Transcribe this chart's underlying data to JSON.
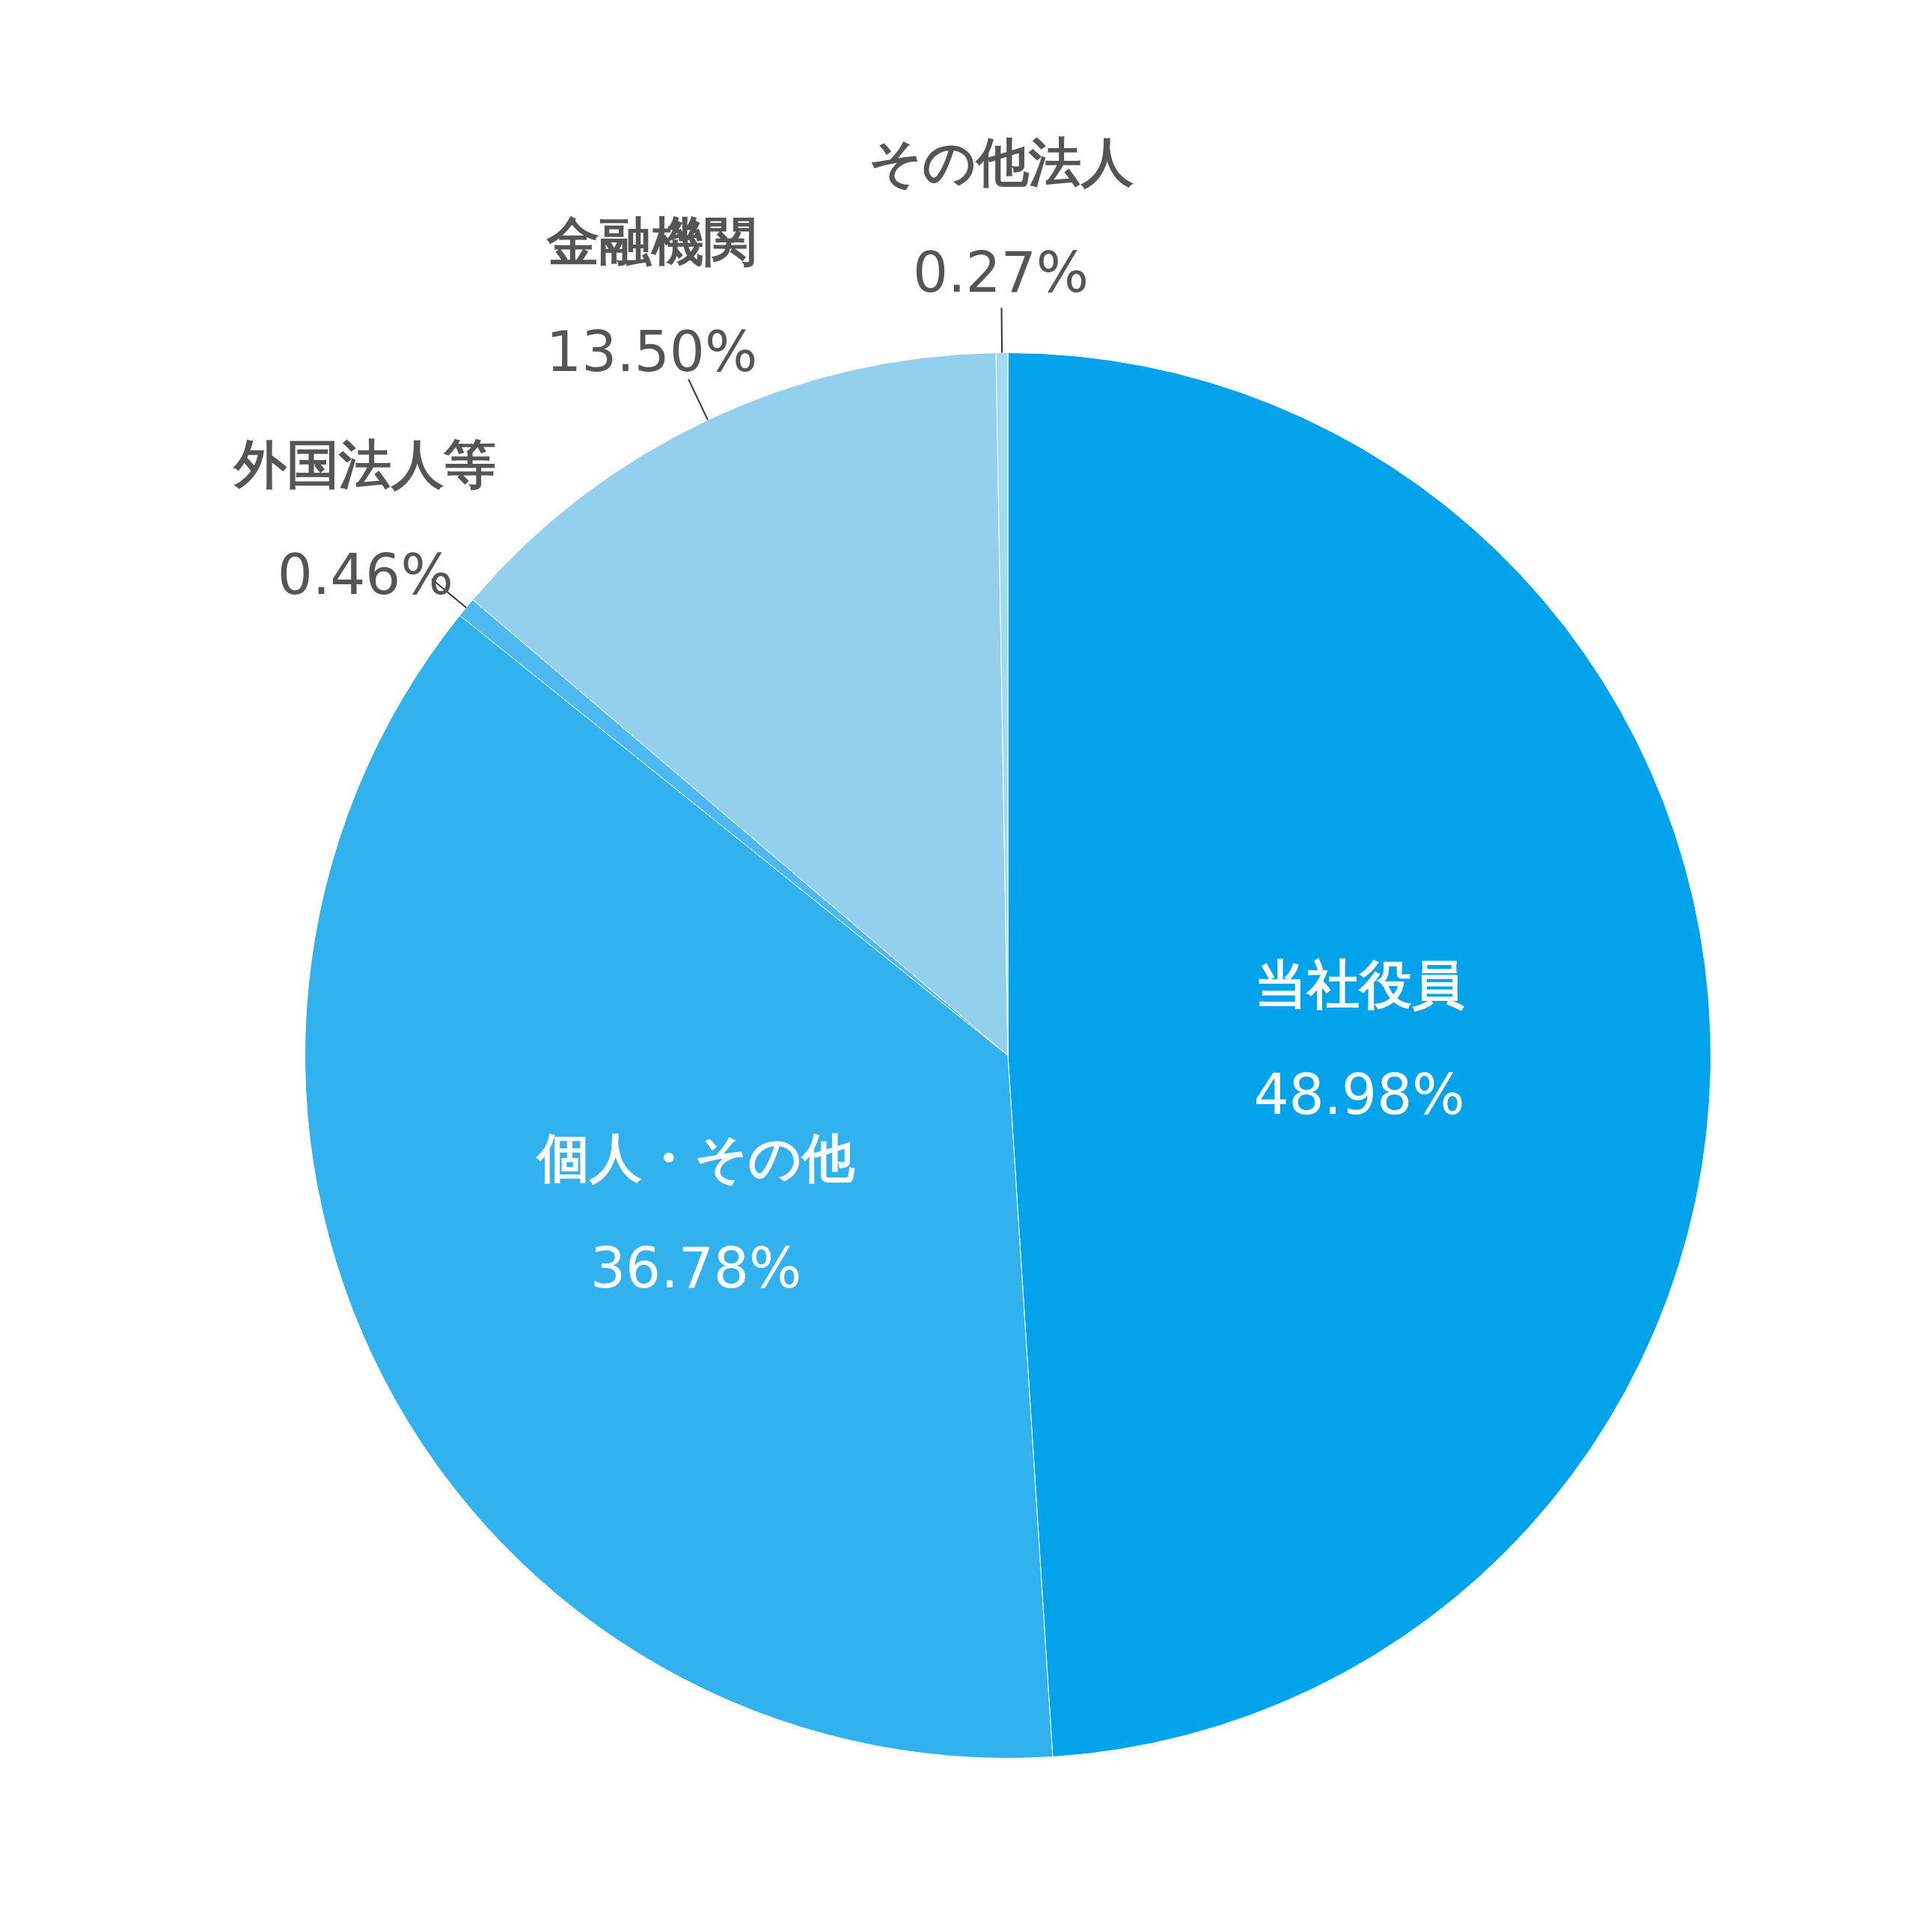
{
  "chart_data": {
    "type": "pie",
    "categories": [
      "当社役員",
      "個人・その他",
      "外国法人等",
      "金融機関",
      "その他法人"
    ],
    "values": [
      48.98,
      36.78,
      0.46,
      13.5,
      0.27
    ],
    "colors": [
      "#03a3ec",
      "#31b1ee",
      "#4db9f0",
      "#92d0ee",
      "#a0dcf0"
    ],
    "value_labels": [
      "48.98%",
      "36.78%",
      "0.46%",
      "13.50%",
      "0.27%"
    ]
  }
}
